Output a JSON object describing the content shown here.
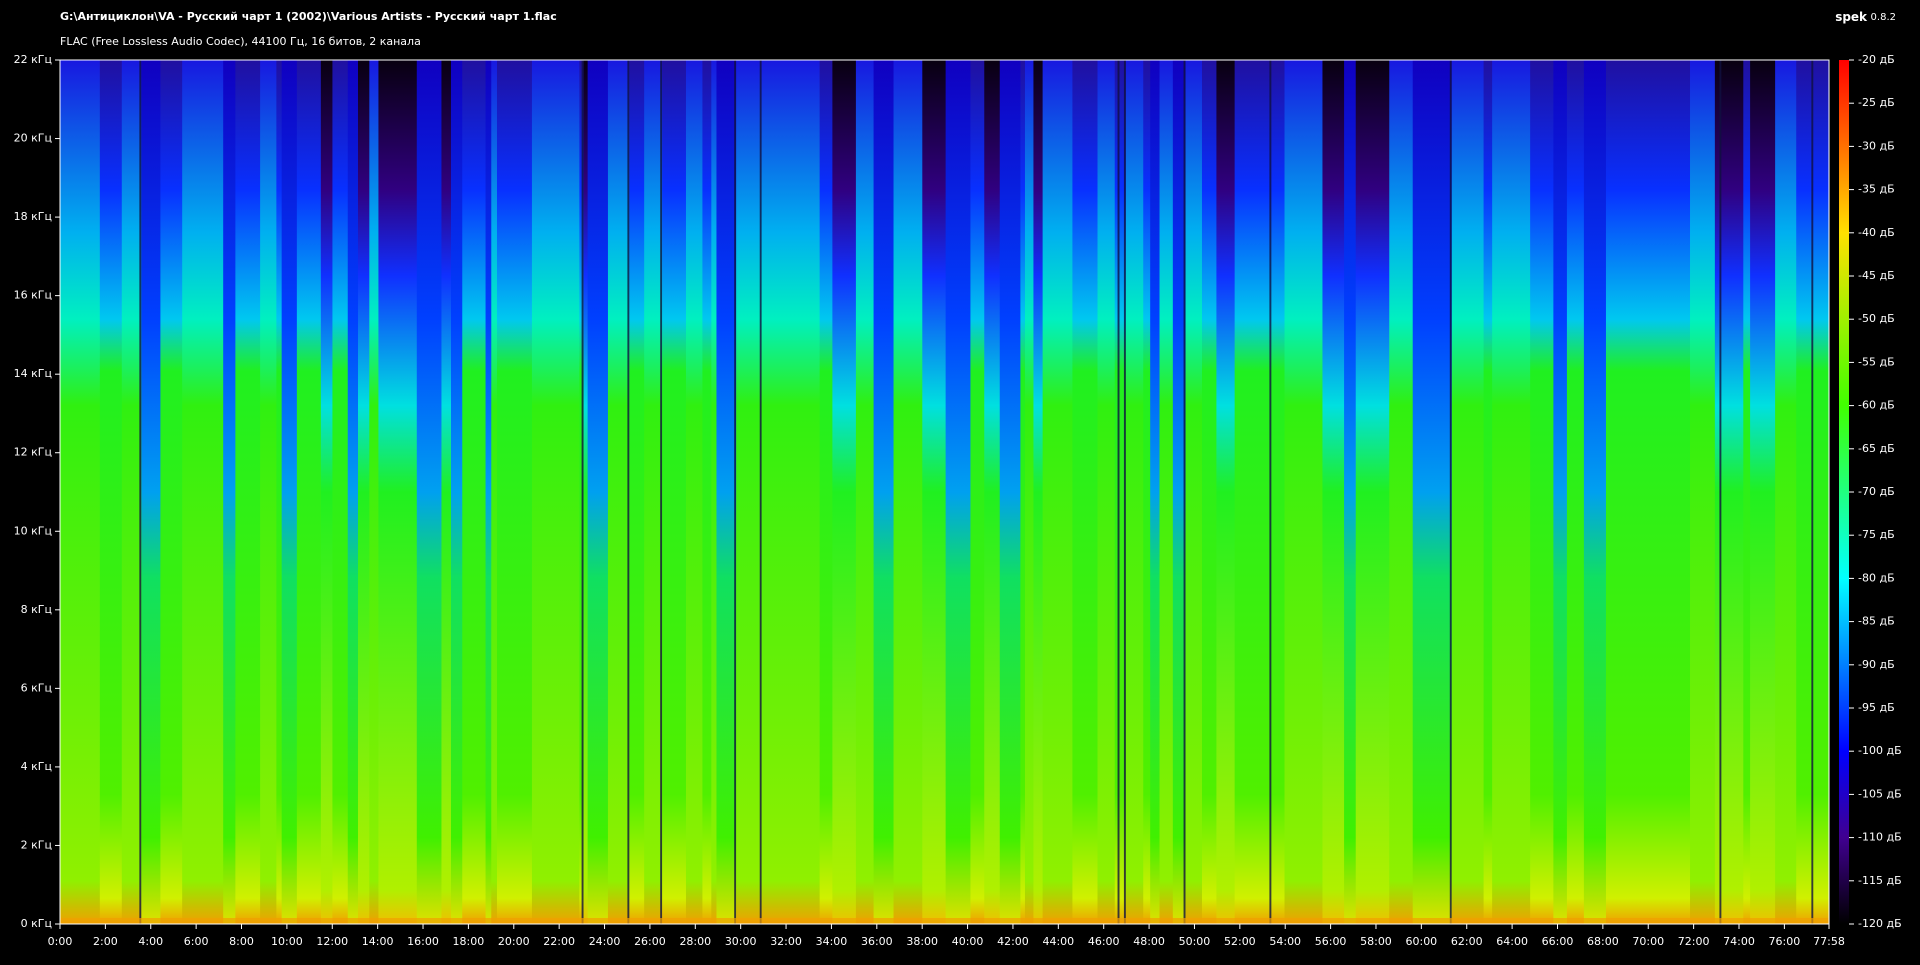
{
  "chart_data": {
    "type": "spectrogram",
    "title": "G:\\Антициклон\\VA - Русский чарт 1 (2002)\\Various Artists - Русский чарт 1.flac",
    "subtitle": "FLAC (Free Lossless Audio Codec), 44100 Гц, 16 битов, 2 канала",
    "app_name": "spek",
    "app_version": "0.8.2",
    "xlim": [
      0,
      4678
    ],
    "xticks": [
      {
        "value": 0,
        "label": "0:00"
      },
      {
        "value": 120,
        "label": "2:00"
      },
      {
        "value": 240,
        "label": "4:00"
      },
      {
        "value": 360,
        "label": "6:00"
      },
      {
        "value": 480,
        "label": "8:00"
      },
      {
        "value": 600,
        "label": "10:00"
      },
      {
        "value": 720,
        "label": "12:00"
      },
      {
        "value": 840,
        "label": "14:00"
      },
      {
        "value": 960,
        "label": "16:00"
      },
      {
        "value": 1080,
        "label": "18:00"
      },
      {
        "value": 1200,
        "label": "20:00"
      },
      {
        "value": 1320,
        "label": "22:00"
      },
      {
        "value": 1440,
        "label": "24:00"
      },
      {
        "value": 1560,
        "label": "26:00"
      },
      {
        "value": 1680,
        "label": "28:00"
      },
      {
        "value": 1800,
        "label": "30:00"
      },
      {
        "value": 1920,
        "label": "32:00"
      },
      {
        "value": 2040,
        "label": "34:00"
      },
      {
        "value": 2160,
        "label": "36:00"
      },
      {
        "value": 2280,
        "label": "38:00"
      },
      {
        "value": 2400,
        "label": "40:00"
      },
      {
        "value": 2520,
        "label": "42:00"
      },
      {
        "value": 2640,
        "label": "44:00"
      },
      {
        "value": 2760,
        "label": "46:00"
      },
      {
        "value": 2880,
        "label": "48:00"
      },
      {
        "value": 3000,
        "label": "50:00"
      },
      {
        "value": 3120,
        "label": "52:00"
      },
      {
        "value": 3240,
        "label": "54:00"
      },
      {
        "value": 3360,
        "label": "56:00"
      },
      {
        "value": 3480,
        "label": "58:00"
      },
      {
        "value": 3600,
        "label": "60:00"
      },
      {
        "value": 3720,
        "label": "62:00"
      },
      {
        "value": 3840,
        "label": "64:00"
      },
      {
        "value": 3960,
        "label": "66:00"
      },
      {
        "value": 4080,
        "label": "68:00"
      },
      {
        "value": 4200,
        "label": "70:00"
      },
      {
        "value": 4320,
        "label": "72:00"
      },
      {
        "value": 4440,
        "label": "74:00"
      },
      {
        "value": 4560,
        "label": "76:00"
      },
      {
        "value": 4678,
        "label": "77:58"
      }
    ],
    "ylim": [
      0,
      22
    ],
    "yticks": [
      {
        "value": 0,
        "label": "0 кГц"
      },
      {
        "value": 2,
        "label": "2 кГц"
      },
      {
        "value": 4,
        "label": "4 кГц"
      },
      {
        "value": 6,
        "label": "6 кГц"
      },
      {
        "value": 8,
        "label": "8 кГц"
      },
      {
        "value": 10,
        "label": "10 кГц"
      },
      {
        "value": 12,
        "label": "12 кГц"
      },
      {
        "value": 14,
        "label": "14 кГц"
      },
      {
        "value": 16,
        "label": "16 кГц"
      },
      {
        "value": 18,
        "label": "18 кГц"
      },
      {
        "value": 20,
        "label": "20 кГц"
      },
      {
        "value": 22,
        "label": "22 кГц"
      }
    ],
    "colorbar_lim": [
      -120,
      -20
    ],
    "colorbar_ticks": [
      {
        "value": -20,
        "label": "-20 дБ"
      },
      {
        "value": -25,
        "label": "-25 дБ"
      },
      {
        "value": -30,
        "label": "-30 дБ"
      },
      {
        "value": -35,
        "label": "-35 дБ"
      },
      {
        "value": -40,
        "label": "-40 дБ"
      },
      {
        "value": -45,
        "label": "-45 дБ"
      },
      {
        "value": -50,
        "label": "-50 дБ"
      },
      {
        "value": -55,
        "label": "-55 дБ"
      },
      {
        "value": -60,
        "label": "-60 дБ"
      },
      {
        "value": -65,
        "label": "-65 дБ"
      },
      {
        "value": -70,
        "label": "-70 дБ"
      },
      {
        "value": -75,
        "label": "-75 дБ"
      },
      {
        "value": -80,
        "label": "-80 дБ"
      },
      {
        "value": -85,
        "label": "-85 дБ"
      },
      {
        "value": -90,
        "label": "-90 дБ"
      },
      {
        "value": -95,
        "label": "-95 дБ"
      },
      {
        "value": -100,
        "label": "-100 дБ"
      },
      {
        "value": -105,
        "label": "-105 дБ"
      },
      {
        "value": -110,
        "label": "-110 дБ"
      },
      {
        "value": -115,
        "label": "-115 дБ"
      },
      {
        "value": -120,
        "label": "-120 дБ"
      }
    ]
  }
}
